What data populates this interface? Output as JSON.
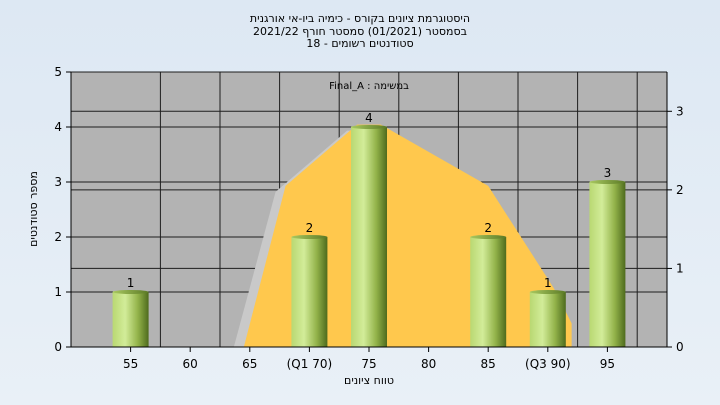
{
  "chart_data": {
    "type": "bar",
    "title_lines": [
      "היסטוגרמת ציונים בקורס - כימיה ביו-אי אורגנית",
      "בסמסטר  (01/2021)  סמסטר חורף 2021/22",
      "סטודנטים רשומים - 18"
    ],
    "inner_label": "Final_A : במשימה",
    "xlabel": "טווח ציונים",
    "ylabel": "מספר סטודנטים",
    "x_ticks": [
      {
        "x": 55,
        "label": "55"
      },
      {
        "x": 60,
        "label": "60"
      },
      {
        "x": 65,
        "label": "65"
      },
      {
        "x": 70,
        "label": "(Q1 70)"
      },
      {
        "x": 75,
        "label": "75"
      },
      {
        "x": 80,
        "label": "80"
      },
      {
        "x": 85,
        "label": "85"
      },
      {
        "x": 90,
        "label": "(Q3 90)"
      },
      {
        "x": 95,
        "label": "95"
      }
    ],
    "xlim": [
      50,
      100
    ],
    "bars": [
      {
        "x": 55,
        "value": 1
      },
      {
        "x": 70,
        "value": 2
      },
      {
        "x": 75,
        "value": 4
      },
      {
        "x": 85,
        "value": 2
      },
      {
        "x": 90,
        "value": 1
      },
      {
        "x": 95,
        "value": 3
      }
    ],
    "ylim_left": [
      0,
      5
    ],
    "yticks_left": [
      0,
      1,
      2,
      3,
      4,
      5
    ],
    "ylim_right": [
      0,
      3.5
    ],
    "yticks_right": [
      0,
      1,
      2,
      3
    ],
    "distribution_curve": [
      {
        "x": 64.5,
        "y": 0
      },
      {
        "x": 68,
        "y": 2.05
      },
      {
        "x": 74,
        "y": 2.83
      },
      {
        "x": 76,
        "y": 2.83
      },
      {
        "x": 85,
        "y": 2.05
      },
      {
        "x": 90.5,
        "y": 0.75
      },
      {
        "x": 92,
        "y": 0.3
      }
    ],
    "grid": true,
    "colors": {
      "plot_bg": "#b3b3b3",
      "grid": "#1e1e1e",
      "curve_fill": "#ffc84d",
      "curve_shadow": "#c9c9c9",
      "bar_light": "#c9e58c",
      "bar_dark": "#4e6b1d",
      "page_bg": "#e1ebf5"
    }
  }
}
